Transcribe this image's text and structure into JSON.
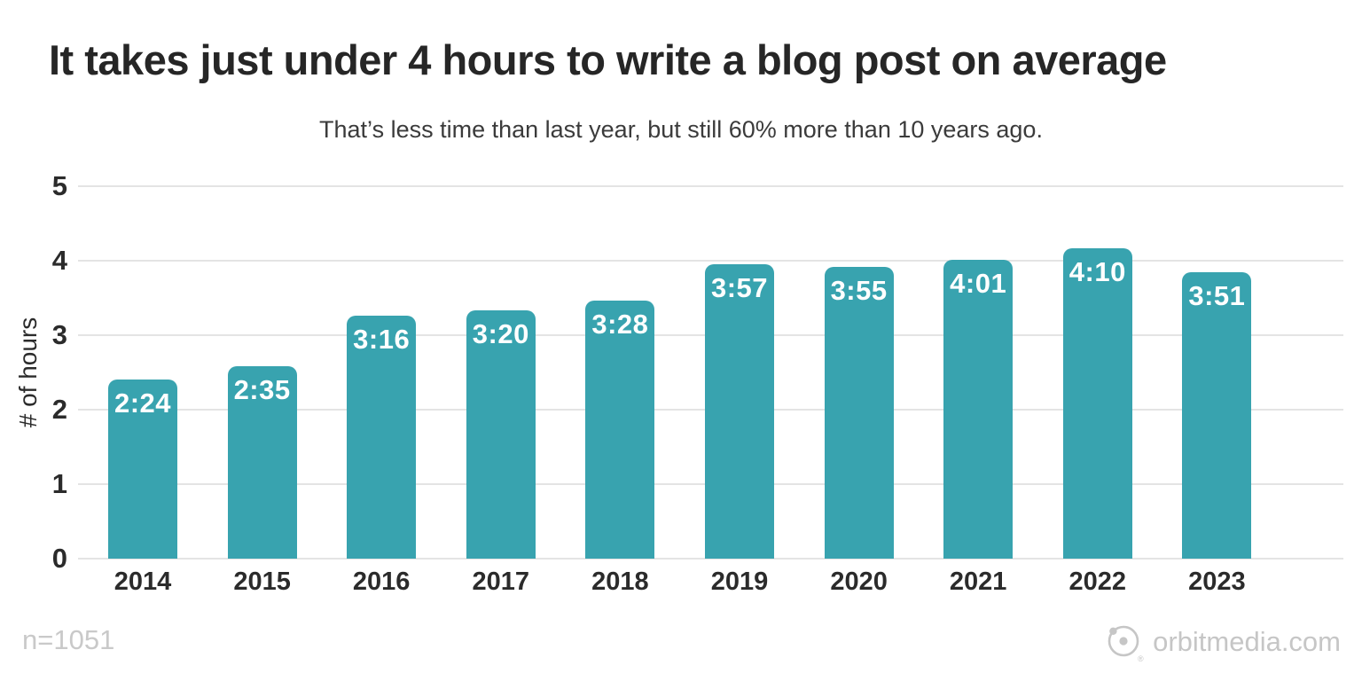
{
  "footer": {
    "sample_size": "n=1051",
    "brand": "orbitmedia.com"
  },
  "chart_data": {
    "type": "bar",
    "title": "It takes just under 4 hours to write a blog post on average",
    "subtitle": "That’s less time than last year, but still 60% more than 10 years ago.",
    "categories": [
      "2014",
      "2015",
      "2016",
      "2017",
      "2018",
      "2019",
      "2020",
      "2021",
      "2022",
      "2023"
    ],
    "values": [
      2.4,
      2.583,
      3.267,
      3.333,
      3.467,
      3.95,
      3.917,
      4.017,
      4.167,
      3.85
    ],
    "bar_labels": [
      "2:24",
      "2:35",
      "3:16",
      "3:20",
      "3:28",
      "3:57",
      "3:55",
      "4:01",
      "4:10",
      "3:51"
    ],
    "xlabel": "",
    "ylabel": "# of hours",
    "ylim": [
      0,
      5
    ],
    "yticks": [
      0,
      1,
      2,
      3,
      4,
      5
    ],
    "legend_position": "none",
    "grid": "horizontal",
    "colors": {
      "bar": "#38a3af",
      "bar_label": "#ffffff",
      "title": "#262626",
      "subtitle": "#3b3b3b",
      "axis_text": "#2b2b2b",
      "gridline": "#e4e4e4",
      "footer_text": "#c6c6c6"
    }
  }
}
